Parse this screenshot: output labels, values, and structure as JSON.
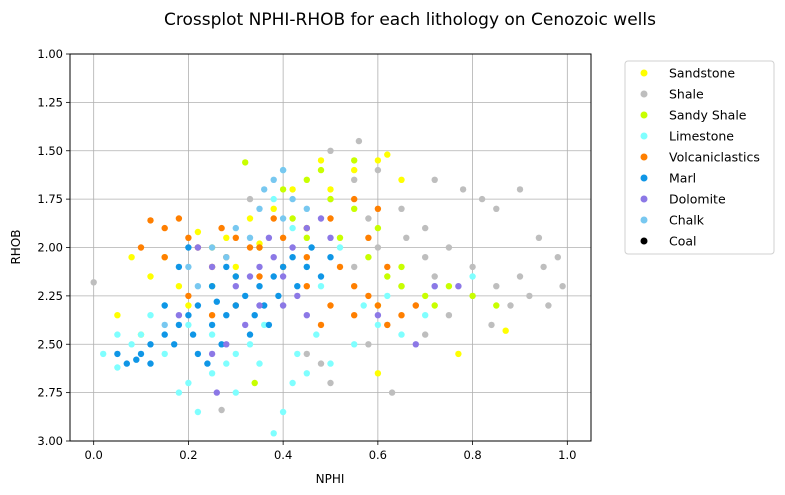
{
  "chart_data": {
    "type": "scatter",
    "title": "Crossplot NPHI-RHOB for each lithology on Cenozoic wells",
    "xlabel": "NPHI",
    "ylabel": "RHOB",
    "xlim": [
      -0.05,
      1.05
    ],
    "ylim": [
      3.0,
      1.0
    ],
    "y_inverted": true,
    "grid": true,
    "legend_position": "outside-right",
    "x_ticks": [
      "0.0",
      "0.2",
      "0.4",
      "0.6",
      "0.8",
      "1.0"
    ],
    "y_ticks": [
      "1.00",
      "1.25",
      "1.50",
      "1.75",
      "2.00",
      "2.25",
      "2.50",
      "2.75",
      "3.00"
    ],
    "series": [
      {
        "name": "Sandstone",
        "color": "#ffff00",
        "points": [
          [
            0.08,
            2.05
          ],
          [
            0.12,
            2.15
          ],
          [
            0.15,
            2.05
          ],
          [
            0.22,
            1.92
          ],
          [
            0.28,
            1.95
          ],
          [
            0.35,
            1.98
          ],
          [
            0.42,
            1.7
          ],
          [
            0.48,
            1.55
          ],
          [
            0.55,
            1.6
          ],
          [
            0.6,
            1.55
          ],
          [
            0.62,
            1.52
          ],
          [
            0.3,
            2.1
          ],
          [
            0.2,
            2.3
          ],
          [
            0.1,
            2.45
          ],
          [
            0.05,
            2.35
          ],
          [
            0.38,
            1.8
          ],
          [
            0.5,
            1.7
          ],
          [
            0.65,
            1.65
          ],
          [
            0.87,
            2.43
          ],
          [
            0.77,
            2.55
          ],
          [
            0.6,
            2.65
          ],
          [
            0.45,
            1.9
          ],
          [
            0.25,
            2.0
          ],
          [
            0.18,
            2.2
          ],
          [
            0.33,
            1.85
          ]
        ]
      },
      {
        "name": "Shale",
        "color": "#bebebe",
        "points": [
          [
            0.0,
            2.18
          ],
          [
            0.5,
            1.75
          ],
          [
            0.55,
            1.65
          ],
          [
            0.6,
            1.6
          ],
          [
            0.65,
            1.8
          ],
          [
            0.7,
            1.9
          ],
          [
            0.75,
            2.0
          ],
          [
            0.8,
            2.1
          ],
          [
            0.85,
            2.2
          ],
          [
            0.9,
            2.15
          ],
          [
            0.95,
            2.1
          ],
          [
            0.98,
            2.05
          ],
          [
            0.92,
            2.25
          ],
          [
            0.88,
            2.3
          ],
          [
            0.82,
            1.75
          ],
          [
            0.78,
            1.7
          ],
          [
            0.72,
            1.65
          ],
          [
            0.68,
            2.3
          ],
          [
            0.62,
            2.4
          ],
          [
            0.58,
            2.5
          ],
          [
            0.56,
            1.45
          ],
          [
            0.5,
            1.5
          ],
          [
            0.45,
            2.55
          ],
          [
            0.5,
            2.7
          ],
          [
            0.63,
            2.75
          ],
          [
            0.7,
            2.45
          ],
          [
            0.85,
            1.8
          ],
          [
            0.9,
            1.7
          ],
          [
            0.96,
            2.3
          ],
          [
            0.99,
            2.2
          ],
          [
            0.75,
            2.35
          ],
          [
            0.65,
            2.2
          ],
          [
            0.55,
            2.1
          ],
          [
            0.6,
            2.0
          ],
          [
            0.7,
            2.05
          ],
          [
            0.8,
            2.25
          ],
          [
            0.27,
            2.84
          ],
          [
            0.4,
            2.3
          ],
          [
            0.48,
            2.6
          ],
          [
            0.33,
            1.75
          ],
          [
            0.72,
            2.15
          ],
          [
            0.94,
            1.95
          ],
          [
            0.84,
            2.4
          ],
          [
            0.58,
            1.85
          ],
          [
            0.66,
            1.95
          ]
        ]
      },
      {
        "name": "Sandy Shale",
        "color": "#c8ff00",
        "points": [
          [
            0.32,
            1.56
          ],
          [
            0.4,
            1.7
          ],
          [
            0.45,
            1.65
          ],
          [
            0.5,
            1.75
          ],
          [
            0.55,
            1.8
          ],
          [
            0.6,
            1.9
          ],
          [
            0.65,
            2.2
          ],
          [
            0.7,
            2.25
          ],
          [
            0.75,
            2.2
          ],
          [
            0.8,
            2.25
          ],
          [
            0.85,
            2.3
          ],
          [
            0.6,
            2.3
          ],
          [
            0.55,
            1.55
          ],
          [
            0.48,
            1.6
          ],
          [
            0.62,
            2.15
          ],
          [
            0.72,
            2.3
          ],
          [
            0.42,
            1.85
          ],
          [
            0.52,
            1.95
          ],
          [
            0.58,
            2.05
          ],
          [
            0.35,
            2.0
          ],
          [
            0.3,
            2.15
          ],
          [
            0.25,
            2.2
          ],
          [
            0.45,
            1.95
          ],
          [
            0.65,
            2.1
          ],
          [
            0.34,
            2.7
          ]
        ]
      },
      {
        "name": "Limestone",
        "color": "#7fffff",
        "points": [
          [
            0.02,
            2.55
          ],
          [
            0.05,
            2.62
          ],
          [
            0.08,
            2.5
          ],
          [
            0.1,
            2.45
          ],
          [
            0.15,
            2.55
          ],
          [
            0.18,
            2.75
          ],
          [
            0.2,
            2.7
          ],
          [
            0.25,
            2.65
          ],
          [
            0.3,
            2.55
          ],
          [
            0.35,
            2.6
          ],
          [
            0.38,
            2.96
          ],
          [
            0.4,
            2.85
          ],
          [
            0.42,
            2.7
          ],
          [
            0.45,
            2.65
          ],
          [
            0.5,
            2.6
          ],
          [
            0.55,
            2.5
          ],
          [
            0.6,
            2.4
          ],
          [
            0.65,
            2.45
          ],
          [
            0.7,
            2.35
          ],
          [
            0.4,
            1.6
          ],
          [
            0.38,
            1.75
          ],
          [
            0.42,
            1.9
          ],
          [
            0.45,
            2.1
          ],
          [
            0.3,
            2.3
          ],
          [
            0.2,
            2.4
          ],
          [
            0.12,
            2.35
          ],
          [
            0.28,
            2.6
          ],
          [
            0.33,
            2.5
          ],
          [
            0.36,
            2.4
          ],
          [
            0.48,
            2.2
          ],
          [
            0.52,
            2.0
          ],
          [
            0.57,
            2.3
          ],
          [
            0.62,
            2.25
          ],
          [
            0.72,
            2.2
          ],
          [
            0.8,
            2.15
          ],
          [
            0.25,
            2.45
          ],
          [
            0.15,
            2.3
          ],
          [
            0.43,
            2.55
          ],
          [
            0.47,
            2.45
          ],
          [
            0.22,
            2.85
          ],
          [
            0.3,
            2.75
          ],
          [
            0.05,
            2.45
          ]
        ]
      },
      {
        "name": "Volcaniclastics",
        "color": "#ff7f00",
        "points": [
          [
            0.12,
            1.86
          ],
          [
            0.15,
            1.9
          ],
          [
            0.18,
            1.85
          ],
          [
            0.2,
            1.95
          ],
          [
            0.22,
            2.0
          ],
          [
            0.25,
            2.1
          ],
          [
            0.28,
            2.05
          ],
          [
            0.3,
            1.95
          ],
          [
            0.35,
            2.0
          ],
          [
            0.4,
            1.95
          ],
          [
            0.45,
            1.9
          ],
          [
            0.5,
            1.85
          ],
          [
            0.55,
            1.75
          ],
          [
            0.6,
            1.8
          ],
          [
            0.52,
            2.1
          ],
          [
            0.55,
            2.2
          ],
          [
            0.5,
            2.3
          ],
          [
            0.48,
            2.4
          ],
          [
            0.55,
            2.35
          ],
          [
            0.6,
            2.3
          ],
          [
            0.62,
            2.4
          ],
          [
            0.65,
            2.35
          ],
          [
            0.58,
            2.25
          ],
          [
            0.45,
            2.2
          ],
          [
            0.4,
            2.1
          ],
          [
            0.35,
            2.15
          ],
          [
            0.3,
            2.3
          ],
          [
            0.25,
            2.35
          ],
          [
            0.2,
            2.25
          ],
          [
            0.15,
            2.05
          ],
          [
            0.1,
            2.0
          ],
          [
            0.45,
            2.05
          ],
          [
            0.58,
            1.95
          ],
          [
            0.62,
            2.1
          ],
          [
            0.68,
            2.3
          ],
          [
            0.33,
            2.0
          ],
          [
            0.38,
            1.85
          ],
          [
            0.27,
            1.9
          ]
        ]
      },
      {
        "name": "Marl",
        "color": "#0f96e6",
        "points": [
          [
            0.05,
            2.55
          ],
          [
            0.07,
            2.6
          ],
          [
            0.1,
            2.55
          ],
          [
            0.12,
            2.5
          ],
          [
            0.15,
            2.45
          ],
          [
            0.18,
            2.4
          ],
          [
            0.2,
            2.35
          ],
          [
            0.22,
            2.3
          ],
          [
            0.25,
            2.4
          ],
          [
            0.28,
            2.35
          ],
          [
            0.3,
            2.3
          ],
          [
            0.32,
            2.25
          ],
          [
            0.35,
            2.2
          ],
          [
            0.38,
            2.15
          ],
          [
            0.4,
            2.1
          ],
          [
            0.42,
            2.05
          ],
          [
            0.45,
            2.1
          ],
          [
            0.48,
            2.15
          ],
          [
            0.5,
            2.05
          ],
          [
            0.2,
            2.0
          ],
          [
            0.18,
            2.1
          ],
          [
            0.25,
            2.2
          ],
          [
            0.28,
            2.1
          ],
          [
            0.15,
            2.3
          ],
          [
            0.12,
            2.6
          ],
          [
            0.22,
            2.55
          ],
          [
            0.27,
            2.5
          ],
          [
            0.33,
            2.45
          ],
          [
            0.37,
            2.4
          ],
          [
            0.24,
            2.6
          ],
          [
            0.3,
            2.15
          ],
          [
            0.36,
            2.3
          ],
          [
            0.43,
            2.2
          ],
          [
            0.46,
            2.0
          ],
          [
            0.09,
            2.58
          ],
          [
            0.17,
            2.5
          ],
          [
            0.21,
            2.45
          ],
          [
            0.26,
            2.28
          ],
          [
            0.34,
            2.35
          ],
          [
            0.39,
            2.25
          ]
        ]
      },
      {
        "name": "Dolomite",
        "color": "#8c78e6",
        "points": [
          [
            0.22,
            2.0
          ],
          [
            0.25,
            2.1
          ],
          [
            0.3,
            2.2
          ],
          [
            0.35,
            2.1
          ],
          [
            0.38,
            2.05
          ],
          [
            0.4,
            2.15
          ],
          [
            0.42,
            2.0
          ],
          [
            0.45,
            1.9
          ],
          [
            0.48,
            1.85
          ],
          [
            0.5,
            1.95
          ],
          [
            0.35,
            2.3
          ],
          [
            0.32,
            2.4
          ],
          [
            0.28,
            2.5
          ],
          [
            0.25,
            2.55
          ],
          [
            0.26,
            2.75
          ],
          [
            0.4,
            2.3
          ],
          [
            0.45,
            2.35
          ],
          [
            0.6,
            2.35
          ],
          [
            0.68,
            2.5
          ],
          [
            0.72,
            2.2
          ],
          [
            0.77,
            2.2
          ],
          [
            0.37,
            1.95
          ],
          [
            0.43,
            2.25
          ],
          [
            0.18,
            2.35
          ],
          [
            0.33,
            2.15
          ]
        ]
      },
      {
        "name": "Chalk",
        "color": "#78c8f0",
        "points": [
          [
            0.4,
            1.6
          ],
          [
            0.38,
            1.65
          ],
          [
            0.35,
            1.8
          ],
          [
            0.3,
            1.9
          ],
          [
            0.25,
            2.0
          ],
          [
            0.2,
            2.1
          ],
          [
            0.42,
            1.75
          ],
          [
            0.45,
            1.8
          ],
          [
            0.33,
            1.95
          ],
          [
            0.28,
            2.05
          ],
          [
            0.22,
            2.2
          ],
          [
            0.15,
            2.4
          ],
          [
            0.4,
            1.85
          ],
          [
            0.36,
            1.7
          ]
        ]
      },
      {
        "name": "Coal",
        "color": "#000000",
        "points": []
      }
    ]
  }
}
